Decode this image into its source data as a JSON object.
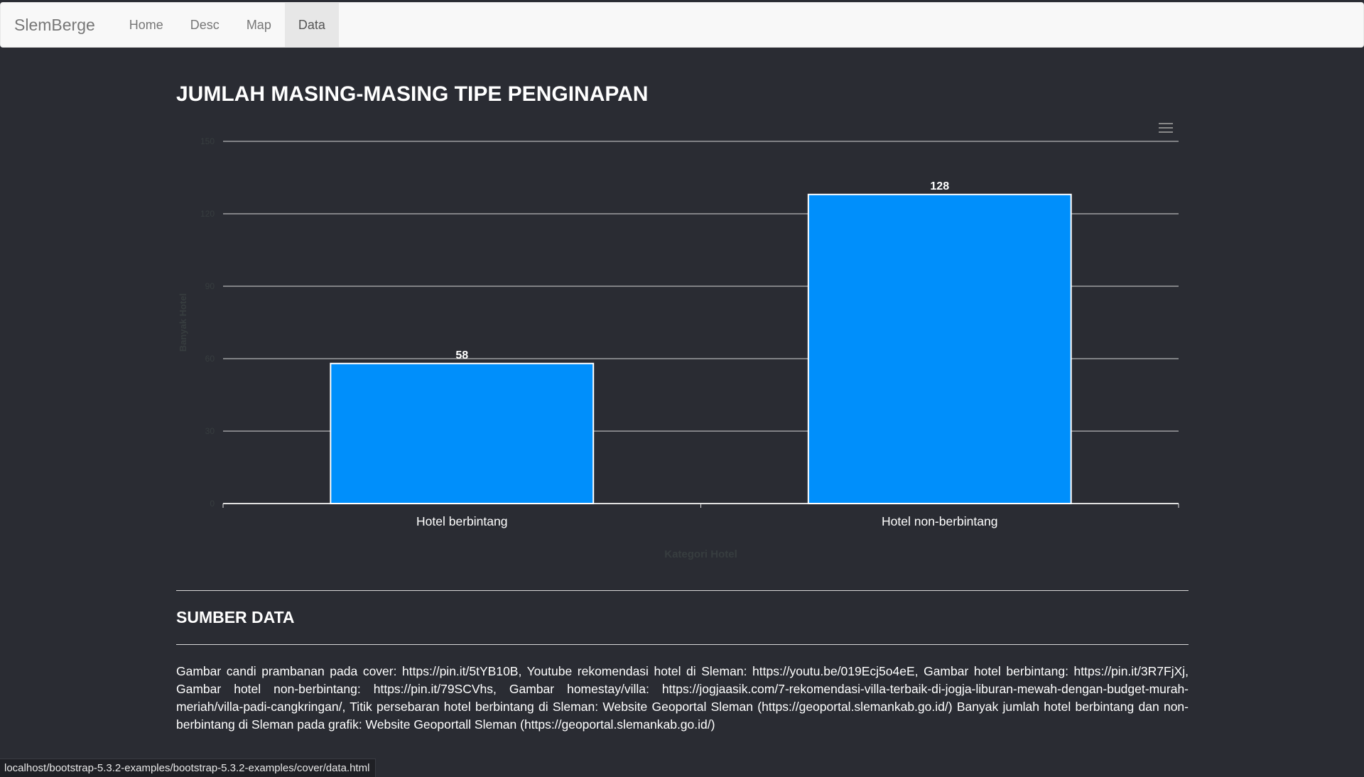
{
  "navbar": {
    "brand": "SlemBerge",
    "items": [
      {
        "label": "Home",
        "active": false
      },
      {
        "label": "Desc",
        "active": false
      },
      {
        "label": "Map",
        "active": false
      },
      {
        "label": "Data",
        "active": true
      }
    ]
  },
  "page": {
    "title": "JUMLAH MASING-MASING TIPE PENGINAPAN"
  },
  "chart_data": {
    "type": "bar",
    "title": "",
    "categories": [
      "Hotel berbintang",
      "Hotel non-berbintang"
    ],
    "values": [
      58,
      128
    ],
    "data_labels": [
      "58",
      "128"
    ],
    "xlabel": "Kategori Hotel",
    "ylabel": "Banyak Hotel",
    "ylim": [
      0,
      150
    ],
    "yticks": [
      0,
      30,
      60,
      90,
      120,
      150
    ],
    "grid": true,
    "legend": "none",
    "bar_color": "#008ffb",
    "menu_icon": "hamburger-menu-icon"
  },
  "sources": {
    "title": "SUMBER DATA",
    "text": "Gambar candi prambanan pada cover: https://pin.it/5tYB10B, Youtube rekomendasi hotel di Sleman: https://youtu.be/019Ecj5o4eE, Gambar hotel berbintang: https://pin.it/3R7FjXj, Gambar hotel non-berbintang: https://pin.it/79SCVhs, Gambar homestay/villa: https://jogjaasik.com/7-rekomendasi-villa-terbaik-di-jogja-liburan-mewah-dengan-budget-murah-meriah/villa-padi-cangkringan/, Titik persebaran hotel berbintang di Sleman: Website Geoportal Sleman (https://geoportal.slemankab.go.id/) Banyak jumlah hotel berbintang dan non-berbintang di Sleman pada grafik: Website Geoportall Sleman (https://geoportal.slemankab.go.id/)"
  },
  "status_bar": {
    "url": "localhost/bootstrap-5.3.2-examples/bootstrap-5.3.2-examples/cover/data.html"
  },
  "colors": {
    "background": "#2a2c33",
    "navbar_bg": "#f8f8f8",
    "bar": "#008ffb"
  }
}
